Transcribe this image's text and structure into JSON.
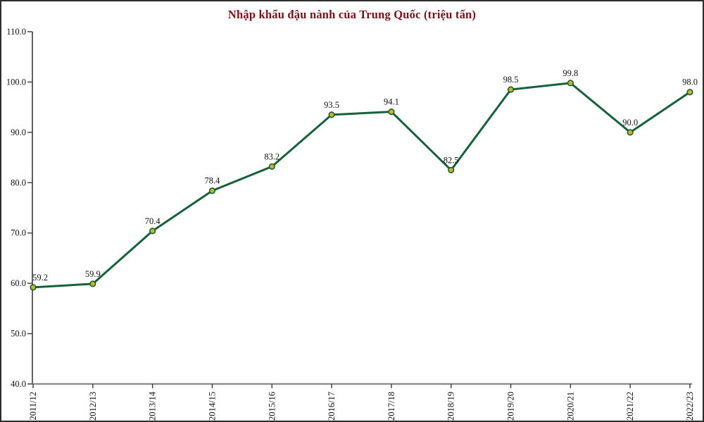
{
  "chart_data": {
    "type": "line",
    "title": "Nhập khẩu đậu nành của Trung Quốc (triệu tấn)",
    "categories": [
      "2011/12",
      "2012/13",
      "2013/14",
      "2014/15",
      "2015/16",
      "2016/17",
      "2017/18",
      "2018/19",
      "2019/20",
      "2020/21",
      "2021/22",
      "2022/23"
    ],
    "values": [
      59.2,
      59.9,
      70.4,
      78.4,
      83.2,
      93.5,
      94.1,
      82.5,
      98.5,
      99.8,
      90.0,
      98.0
    ],
    "xlabel": "",
    "ylabel": "",
    "ylim": [
      40.0,
      110.0
    ],
    "ytick_step": 10,
    "ytick_decimals": 1,
    "value_label_decimals": 1,
    "grid": "off",
    "legend": "none",
    "colors": {
      "line": "#17613a",
      "marker_fill": "#c8b626",
      "marker_stroke": "#1d5c36",
      "title": "#7a1118",
      "y_axis": "#3a3a3a",
      "x_axis_line": "#8f8f8f",
      "tick": "#3a3a3a",
      "text": "#111111"
    }
  }
}
